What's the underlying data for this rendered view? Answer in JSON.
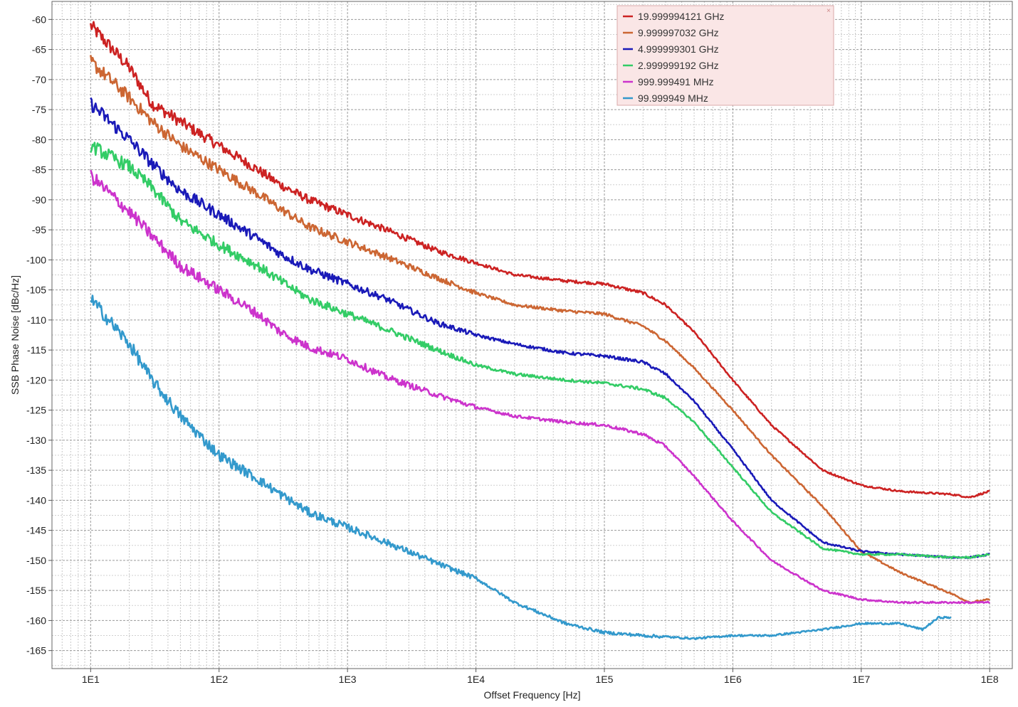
{
  "chart_data": {
    "type": "line",
    "xlabel": "Offset Frequency [Hz]",
    "ylabel": "SSB Phase Noise [dBc/Hz]",
    "x_scale": "log",
    "xlim": [
      5,
      150000000
    ],
    "ylim": [
      -168,
      -57
    ],
    "x_ticks": [
      {
        "value": 10,
        "label": "1E1"
      },
      {
        "value": 100,
        "label": "1E2"
      },
      {
        "value": 1000,
        "label": "1E3"
      },
      {
        "value": 10000,
        "label": "1E4"
      },
      {
        "value": 100000,
        "label": "1E5"
      },
      {
        "value": 1000000,
        "label": "1E6"
      },
      {
        "value": 10000000,
        "label": "1E7"
      },
      {
        "value": 100000000,
        "label": "1E8"
      }
    ],
    "y_ticks": [
      -60,
      -65,
      -70,
      -75,
      -80,
      -85,
      -90,
      -95,
      -100,
      -105,
      -110,
      -115,
      -120,
      -125,
      -130,
      -135,
      -140,
      -145,
      -150,
      -155,
      -160,
      -165
    ],
    "grid": true,
    "legend_position": "top-right",
    "background_color": "#ffffff",
    "legend_bg": "#fae6e6",
    "series": [
      {
        "name": "19.999994121 GHz",
        "color": "#cc2222",
        "points": [
          [
            10,
            -61
          ],
          [
            20,
            -68
          ],
          [
            30,
            -74
          ],
          [
            50,
            -77
          ],
          [
            100,
            -81
          ],
          [
            200,
            -85
          ],
          [
            300,
            -87.5
          ],
          [
            500,
            -90
          ],
          [
            1000,
            -92.5
          ],
          [
            2000,
            -95
          ],
          [
            5000,
            -98.5
          ],
          [
            10000,
            -100.5
          ],
          [
            20000,
            -102.5
          ],
          [
            50000,
            -103.5
          ],
          [
            100000,
            -104
          ],
          [
            200000,
            -105.5
          ],
          [
            300000,
            -107.5
          ],
          [
            500000,
            -112
          ],
          [
            1000000,
            -120
          ],
          [
            2000000,
            -127.5
          ],
          [
            5000000,
            -135
          ],
          [
            10000000,
            -137.5
          ],
          [
            20000000,
            -138.5
          ],
          [
            50000000,
            -139
          ],
          [
            70000000,
            -139.5
          ],
          [
            100000000,
            -138.5
          ]
        ]
      },
      {
        "name": "9.999997032 GHz",
        "color": "#cc6633",
        "points": [
          [
            10,
            -67
          ],
          [
            20,
            -73
          ],
          [
            30,
            -77
          ],
          [
            50,
            -81
          ],
          [
            100,
            -85
          ],
          [
            200,
            -89
          ],
          [
            300,
            -91.5
          ],
          [
            500,
            -94.5
          ],
          [
            1000,
            -97
          ],
          [
            2000,
            -99.5
          ],
          [
            5000,
            -103
          ],
          [
            10000,
            -105.5
          ],
          [
            20000,
            -107.5
          ],
          [
            50000,
            -108.5
          ],
          [
            100000,
            -109
          ],
          [
            200000,
            -111
          ],
          [
            300000,
            -113.5
          ],
          [
            500000,
            -118
          ],
          [
            1000000,
            -125
          ],
          [
            2000000,
            -132.5
          ],
          [
            5000000,
            -141
          ],
          [
            10000000,
            -148.5
          ],
          [
            20000000,
            -152
          ],
          [
            50000000,
            -155.5
          ],
          [
            70000000,
            -157
          ],
          [
            100000000,
            -156.5
          ]
        ]
      },
      {
        "name": "4.999999301 GHz",
        "color": "#1a1ab8",
        "points": [
          [
            10,
            -74
          ],
          [
            20,
            -80
          ],
          [
            30,
            -84
          ],
          [
            50,
            -88.5
          ],
          [
            100,
            -92.5
          ],
          [
            200,
            -96.5
          ],
          [
            300,
            -99
          ],
          [
            500,
            -101.5
          ],
          [
            1000,
            -104
          ],
          [
            2000,
            -106.5
          ],
          [
            5000,
            -110.5
          ],
          [
            10000,
            -112.5
          ],
          [
            20000,
            -114
          ],
          [
            50000,
            -115.5
          ],
          [
            100000,
            -116
          ],
          [
            200000,
            -117
          ],
          [
            300000,
            -119
          ],
          [
            500000,
            -123.5
          ],
          [
            1000000,
            -131.5
          ],
          [
            2000000,
            -140
          ],
          [
            5000000,
            -147
          ],
          [
            10000000,
            -148.5
          ],
          [
            20000000,
            -149
          ],
          [
            50000000,
            -149.5
          ],
          [
            70000000,
            -149.5
          ],
          [
            100000000,
            -149
          ]
        ]
      },
      {
        "name": "2.999999192 GHz",
        "color": "#33cc66",
        "points": [
          [
            10,
            -81
          ],
          [
            20,
            -84.5
          ],
          [
            30,
            -88
          ],
          [
            50,
            -93.5
          ],
          [
            100,
            -97.5
          ],
          [
            200,
            -101
          ],
          [
            300,
            -103.5
          ],
          [
            500,
            -106.5
          ],
          [
            1000,
            -109
          ],
          [
            2000,
            -111.5
          ],
          [
            5000,
            -115
          ],
          [
            10000,
            -117.5
          ],
          [
            20000,
            -119
          ],
          [
            50000,
            -120
          ],
          [
            100000,
            -120.5
          ],
          [
            200000,
            -121.5
          ],
          [
            300000,
            -123
          ],
          [
            500000,
            -127
          ],
          [
            1000000,
            -134.5
          ],
          [
            2000000,
            -142
          ],
          [
            5000000,
            -148
          ],
          [
            10000000,
            -149
          ],
          [
            20000000,
            -149
          ],
          [
            50000000,
            -149.5
          ],
          [
            70000000,
            -149.5
          ],
          [
            100000000,
            -149
          ]
        ]
      },
      {
        "name": "999.999491 MHz",
        "color": "#cc33cc",
        "points": [
          [
            10,
            -86
          ],
          [
            20,
            -92
          ],
          [
            30,
            -96
          ],
          [
            50,
            -101
          ],
          [
            100,
            -105
          ],
          [
            200,
            -109
          ],
          [
            300,
            -112
          ],
          [
            500,
            -114.5
          ],
          [
            1000,
            -116.5
          ],
          [
            2000,
            -119.5
          ],
          [
            5000,
            -122.5
          ],
          [
            10000,
            -124.5
          ],
          [
            20000,
            -126
          ],
          [
            50000,
            -127
          ],
          [
            100000,
            -127.5
          ],
          [
            200000,
            -129
          ],
          [
            300000,
            -131
          ],
          [
            500000,
            -136
          ],
          [
            1000000,
            -143.5
          ],
          [
            2000000,
            -150
          ],
          [
            5000000,
            -155
          ],
          [
            10000000,
            -156.5
          ],
          [
            20000000,
            -157
          ],
          [
            50000000,
            -157
          ],
          [
            70000000,
            -157
          ],
          [
            100000000,
            -157
          ]
        ]
      },
      {
        "name": "99.999949 MHz",
        "color": "#3399cc",
        "points": [
          [
            10,
            -106.5
          ],
          [
            20,
            -114
          ],
          [
            30,
            -120
          ],
          [
            50,
            -126
          ],
          [
            100,
            -132.5
          ],
          [
            200,
            -136.5
          ],
          [
            300,
            -139
          ],
          [
            500,
            -142
          ],
          [
            1000,
            -144.5
          ],
          [
            2000,
            -147
          ],
          [
            5000,
            -150.5
          ],
          [
            10000,
            -153
          ],
          [
            20000,
            -157
          ],
          [
            50000,
            -160.5
          ],
          [
            100000,
            -162
          ],
          [
            200000,
            -162.5
          ],
          [
            500000,
            -163
          ],
          [
            1000000,
            -162.5
          ],
          [
            2000000,
            -162.5
          ],
          [
            5000000,
            -161.5
          ],
          [
            10000000,
            -160.5
          ],
          [
            20000000,
            -160.5
          ],
          [
            30000000,
            -161.5
          ],
          [
            40000000,
            -159.5
          ],
          [
            50000000,
            -159.5
          ]
        ]
      }
    ]
  }
}
